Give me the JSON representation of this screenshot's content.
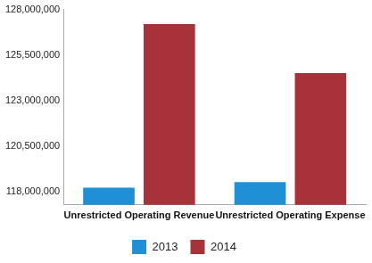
{
  "chart_data": {
    "type": "bar",
    "categories": [
      "Unrestricted Operating Revenue",
      "Unrestricted Operating Expense"
    ],
    "series": [
      {
        "name": "2013",
        "color": "#1f8fd6",
        "values": [
          118200000,
          118500000
        ]
      },
      {
        "name": "2014",
        "color": "#a8323a",
        "values": [
          127200000,
          124500000
        ]
      }
    ],
    "ylim": [
      117250000,
      128000000
    ],
    "yticks": [
      {
        "value": 118000000,
        "label": "118,000,000"
      },
      {
        "value": 120500000,
        "label": "120,500,000"
      },
      {
        "value": 123000000,
        "label": "123,000,000"
      },
      {
        "value": 125500000,
        "label": "125,500,000"
      },
      {
        "value": 128000000,
        "label": "128,000,000"
      }
    ],
    "grid": false,
    "legend": "bottom"
  }
}
